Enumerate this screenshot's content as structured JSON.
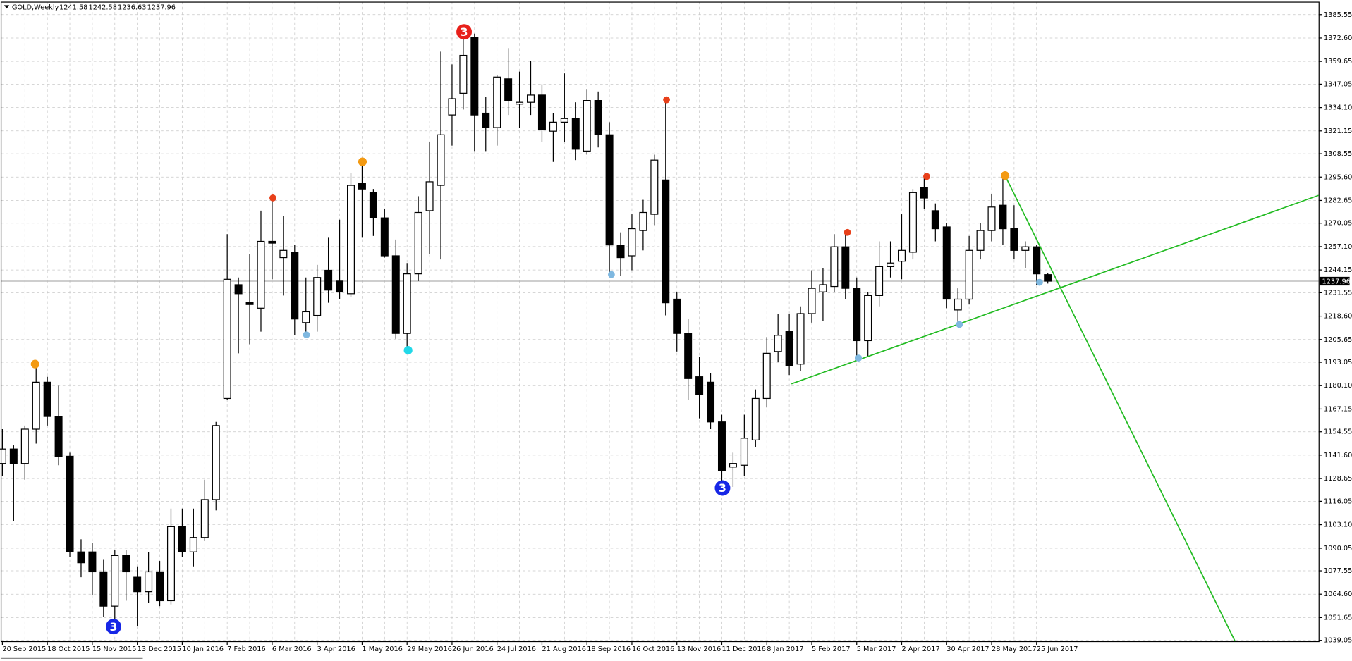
{
  "chart_data": {
    "type": "candlestick",
    "title": "GOLD,Weekly",
    "categories": [
      "20 Sep 2015",
      null,
      null,
      null,
      "18 Oct 2015",
      null,
      null,
      null,
      "15 Nov 2015",
      null,
      null,
      null,
      "13 Dec 2015",
      null,
      null,
      null,
      "10 Jan 2016",
      null,
      null,
      null,
      "7 Feb 2016",
      null,
      null,
      null,
      "6 Mar 2016",
      null,
      null,
      null,
      "3 Apr 2016",
      null,
      null,
      null,
      "1 May 2016",
      null,
      null,
      null,
      "29 May 2016",
      null,
      null,
      null,
      "26 Jun 2016",
      null,
      null,
      null,
      "24 Jul 2016",
      null,
      null,
      null,
      "21 Aug 2016",
      null,
      null,
      null,
      "18 Sep 2016",
      null,
      null,
      null,
      "16 Oct 2016",
      null,
      null,
      null,
      "13 Nov 2016",
      null,
      null,
      null,
      "11 Dec 2016",
      null,
      null,
      null,
      "8 Jan 2017",
      null,
      null,
      null,
      "5 Feb 2017",
      null,
      null,
      null,
      "5 Mar 2017",
      null,
      null,
      null,
      "2 Apr 2017",
      null,
      null,
      null,
      "30 Apr 2017",
      null,
      null,
      null,
      "28 May 2017",
      null,
      null,
      null,
      "25 Jun 2017",
      null
    ],
    "open": [
      1137,
      1145,
      1137,
      1156,
      1182,
      1163,
      1141,
      1088,
      1088,
      1077,
      1058,
      1086,
      1074,
      1066,
      1077,
      1061,
      1102,
      1088,
      1096,
      1117,
      1173,
      1236,
      1226,
      1223,
      1260,
      1251,
      1254,
      1215,
      1219,
      1244,
      1238,
      1231,
      1292,
      1287,
      1273,
      1252,
      1209,
      1242,
      1277,
      1291,
      1330,
      1342,
      1373,
      1331,
      1323,
      1350,
      1336,
      1337,
      1341,
      1321,
      1326,
      1328,
      1310,
      1338,
      1319,
      1258,
      1252,
      1266,
      1275,
      1294,
      1228,
      1209,
      1185,
      1182,
      1160,
      1135,
      1136,
      1150,
      1173,
      1199,
      1210,
      1192,
      1220,
      1232,
      1235,
      1257,
      1234,
      1205,
      1230,
      1246,
      1249,
      1254,
      1290,
      1277,
      1268,
      1222,
      1228,
      1255,
      1266,
      1280,
      1267,
      1255,
      1257,
      1241.58
    ],
    "high": [
      1156,
      1147,
      1158,
      1191,
      1185,
      1180,
      1143,
      1095,
      1093,
      1084,
      1089,
      1089,
      1080,
      1088,
      1083,
      1112,
      1112,
      1112,
      1128,
      1160,
      1264,
      1240,
      1253,
      1277,
      1283,
      1274,
      1258,
      1240,
      1247,
      1262,
      1272,
      1298,
      1303,
      1289,
      1278,
      1261,
      1248,
      1285,
      1315,
      1365,
      1358,
      1375,
      1375,
      1340,
      1352,
      1367,
      1354,
      1360,
      1347,
      1331,
      1353,
      1337,
      1344,
      1343,
      1326,
      1265,
      1275,
      1283,
      1308,
      1339,
      1232,
      1217,
      1196,
      1187,
      1164,
      1143,
      1164,
      1178,
      1207,
      1220,
      1220,
      1224,
      1244,
      1245,
      1264,
      1264,
      1240,
      1232,
      1260,
      1260,
      1275,
      1289,
      1296,
      1281,
      1270,
      1234,
      1263,
      1270,
      1286,
      1296,
      1280,
      1260,
      1258,
      1242.58
    ],
    "low": [
      1130,
      1105,
      1128,
      1148,
      1158,
      1136,
      1085,
      1074,
      1064,
      1052,
      1046,
      1061,
      1047,
      1060,
      1058,
      1059,
      1085,
      1080,
      1094,
      1111,
      1172,
      1198,
      1203,
      1210,
      1239,
      1230,
      1208,
      1207,
      1210,
      1226,
      1228,
      1229,
      1262,
      1263,
      1251,
      1206,
      1200,
      1238,
      1253,
      1250,
      1313,
      1333,
      1310,
      1310,
      1313,
      1330,
      1323,
      1330,
      1315,
      1304,
      1315,
      1305,
      1308,
      1312,
      1241,
      1241,
      1244,
      1255,
      1269,
      1219,
      1199,
      1172,
      1162,
      1156,
      1124,
      1124,
      1130,
      1146,
      1168,
      1193,
      1186,
      1188,
      1215,
      1216,
      1232,
      1228,
      1195,
      1196,
      1224,
      1240,
      1239,
      1250,
      1278,
      1260,
      1223,
      1214,
      1225,
      1250,
      1260,
      1258,
      1250,
      1245,
      1236,
      1236.63
    ],
    "close": [
      1145,
      1137,
      1156,
      1182,
      1163,
      1141,
      1088,
      1082,
      1077,
      1058,
      1086,
      1077,
      1066,
      1077,
      1061,
      1102,
      1088,
      1096,
      1117,
      1158,
      1239,
      1231,
      1225,
      1260,
      1259,
      1255,
      1217,
      1221,
      1240,
      1233,
      1232,
      1291,
      1289,
      1273,
      1252,
      1209,
      1242,
      1276,
      1293,
      1319,
      1339,
      1363,
      1330,
      1323,
      1351,
      1338,
      1337,
      1341,
      1322,
      1326,
      1328,
      1311,
      1338,
      1319,
      1258,
      1251,
      1267,
      1276,
      1305,
      1226,
      1209,
      1184,
      1175,
      1160,
      1133,
      1137,
      1151,
      1173,
      1198,
      1208,
      1191,
      1220,
      1234,
      1236,
      1257,
      1234,
      1205,
      1230,
      1246,
      1248,
      1255,
      1287,
      1284,
      1267,
      1228,
      1228,
      1255,
      1266,
      1279,
      1267,
      1255,
      1257,
      1242,
      1237.96
    ],
    "up_color": "#ffffff",
    "down_color": "#000000",
    "ylim": [
      1038.1,
      1392.7
    ],
    "yticks": [
      1039.05,
      1051.65,
      {
        "value": 1064.6,
        "label": "1064.60"
      },
      1077.55,
      1090.05,
      {
        "value": 1103.1,
        "label": "1103.10"
      },
      1116.05,
      1128.65,
      {
        "value": 1141.6,
        "label": "1141.60"
      },
      1154.55,
      1167.15,
      {
        "value": 1180.1,
        "label": "1180.10"
      },
      1193.05,
      1205.65,
      {
        "value": 1218.6,
        "label": "1218.60"
      },
      1231.55,
      1244.15,
      {
        "value": 1257.1,
        "label": "1257.10"
      },
      1270.05,
      1282.65,
      {
        "value": 1295.6,
        "label": "1295.60"
      },
      1308.55,
      1321.15,
      {
        "value": 1334.1,
        "label": "1334.10"
      },
      1347.05,
      1359.65,
      {
        "value": 1372.6,
        "label": "1372.60"
      },
      1385.55
    ],
    "grid": true,
    "annotations": [
      "3",
      "3",
      "3"
    ]
  }
}
